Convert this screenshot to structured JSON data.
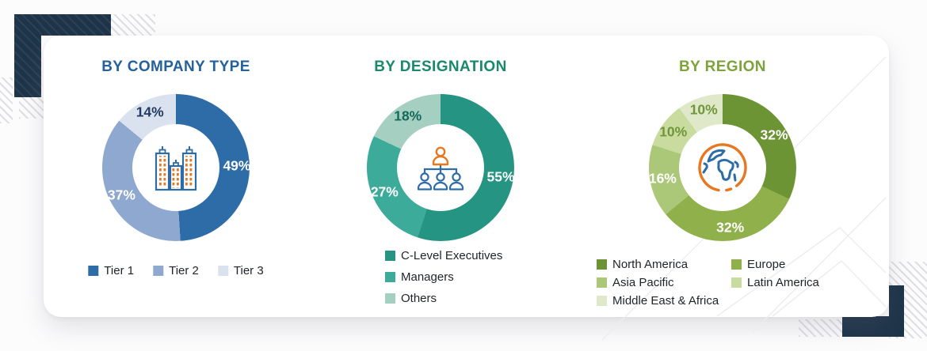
{
  "theme": {
    "page_bg": "#fcfcfd",
    "card_bg": "#ffffff",
    "navy": "#1e3449",
    "hatch_gray": "#dfdfe3",
    "icon_blue": "#2e6ca8",
    "icon_orange": "#e87722",
    "legend_text": "#1f2328"
  },
  "chart_data": [
    {
      "type": "pie",
      "subtype": "donut",
      "title": "BY COMPANY TYPE",
      "title_color": "#25619b",
      "center_icon": "buildings-icon",
      "legend_layout": "horizontal",
      "slices": [
        {
          "label": "Tier 1",
          "value": 49,
          "display": "49%",
          "color": "#2e6ca8",
          "label_color": "#ffffff"
        },
        {
          "label": "Tier 2",
          "value": 37,
          "display": "37%",
          "color": "#8fa8d0",
          "label_color": "#ffffff"
        },
        {
          "label": "Tier 3",
          "value": 14,
          "display": "14%",
          "color": "#dbe2ef",
          "label_color": "#1f3a5f"
        }
      ]
    },
    {
      "type": "pie",
      "subtype": "donut",
      "title": "BY DESIGNATION",
      "title_color": "#18886e",
      "center_icon": "org-chart-icon",
      "legend_layout": "vertical",
      "slices": [
        {
          "label": "C-Level Executives",
          "value": 55,
          "display": "55%",
          "color": "#259482",
          "label_color": "#ffffff"
        },
        {
          "label": "Managers",
          "value": 27,
          "display": "27%",
          "color": "#3cab99",
          "label_color": "#ffffff"
        },
        {
          "label": "Others",
          "value": 18,
          "display": "18%",
          "color": "#a5cfc0",
          "label_color": "#16695c"
        }
      ]
    },
    {
      "type": "pie",
      "subtype": "donut",
      "title": "BY REGION",
      "title_color": "#7da33b",
      "center_icon": "globe-icon",
      "legend_layout": "two-column",
      "slices": [
        {
          "label": "North America",
          "value": 32,
          "display": "32%",
          "color": "#6d9434",
          "label_color": "#ffffff"
        },
        {
          "label": "Europe",
          "value": 32,
          "display": "32%",
          "color": "#8fb04a",
          "label_color": "#ffffff"
        },
        {
          "label": "Asia Pacific",
          "value": 16,
          "display": "16%",
          "color": "#abc778",
          "label_color": "#ffffff"
        },
        {
          "label": "Latin America",
          "value": 10,
          "display": "10%",
          "color": "#c9db9e",
          "label_color": "#70953a"
        },
        {
          "label": "Middle East & Africa",
          "value": 10,
          "display": "10%",
          "color": "#dfe9ca",
          "label_color": "#70953a"
        }
      ]
    }
  ]
}
